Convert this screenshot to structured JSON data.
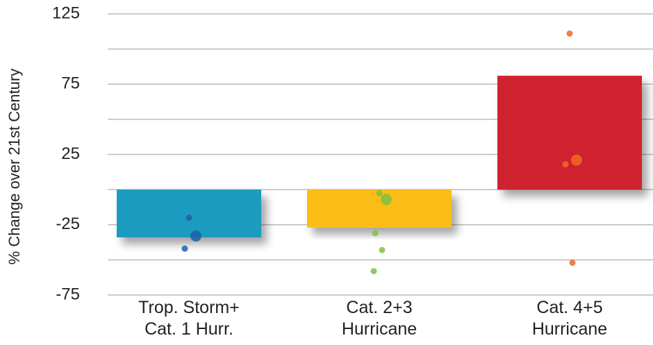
{
  "chart_data": {
    "type": "bar",
    "y_label": "% Change over 21st Century",
    "categories": [
      "Trop. Storm+\nCat. 1 Hurr.",
      "Cat. 2+3\nHurricane",
      "Cat. 4+5\nHurricane"
    ],
    "values": [
      -34,
      -27,
      81
    ],
    "colors": [
      "#1a9bc0",
      "#fbbd18",
      "#d0202e"
    ],
    "point_colors": [
      "#1d5fa8",
      "#7cc243",
      "#f06a22"
    ],
    "points": [
      [
        -20,
        -33,
        -42
      ],
      [
        -2.5,
        -7,
        -31,
        -43,
        -58
      ],
      [
        111,
        21,
        18,
        -52
      ]
    ],
    "ylim": [
      -75,
      125
    ],
    "yticks": [
      -75,
      -25,
      25,
      75,
      125
    ],
    "grid": true
  }
}
